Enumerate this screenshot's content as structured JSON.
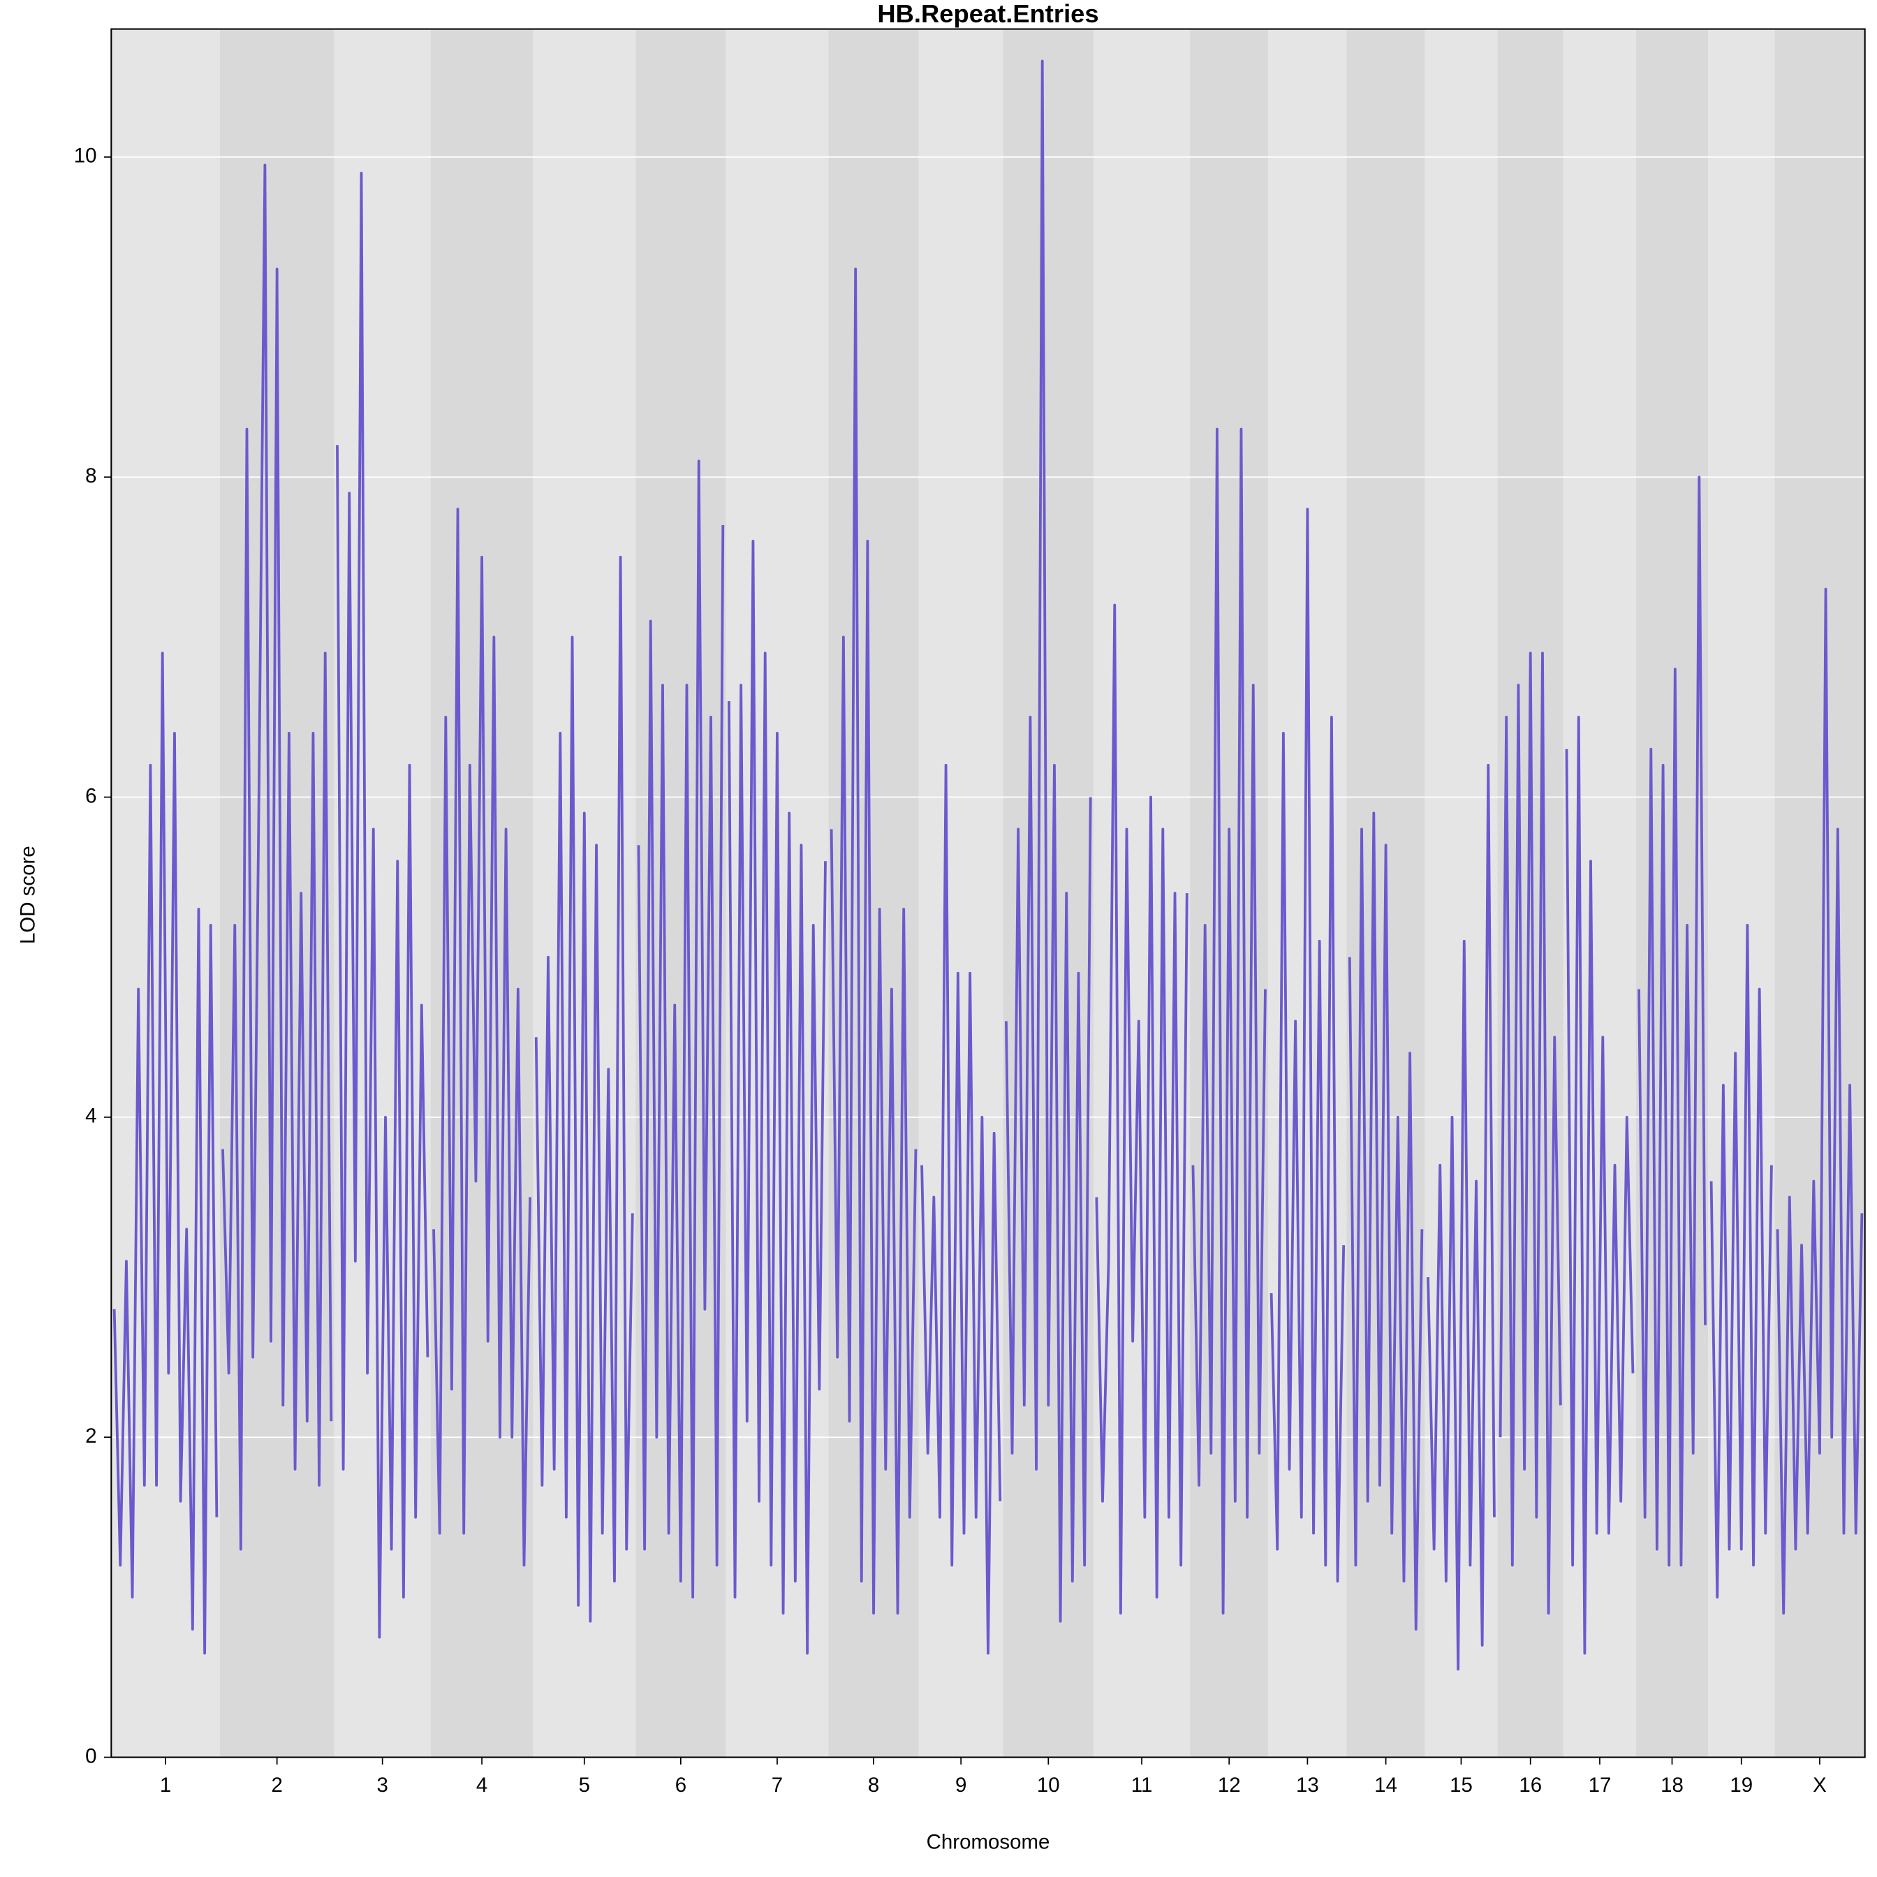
{
  "chart_data": {
    "type": "line",
    "title": "HB.Repeat.Entries",
    "x_label": "Chromosome",
    "y_label": "LOD score",
    "ylim": [
      0,
      10.8
    ],
    "yticks": [
      0,
      2,
      4,
      6,
      8,
      10
    ],
    "grid": true,
    "color": "#6a5acd",
    "band_colors": [
      "#e5e5e5",
      "#d9d9d9"
    ],
    "categories": [
      "1",
      "2",
      "3",
      "4",
      "5",
      "6",
      "7",
      "8",
      "9",
      "10",
      "11",
      "12",
      "13",
      "14",
      "15",
      "16",
      "17",
      "18",
      "19",
      "X"
    ],
    "values": [
      [
        2.8,
        1.2,
        3.1,
        1.0,
        4.8,
        1.7,
        6.2,
        1.7,
        6.9,
        2.4,
        6.4,
        1.6,
        3.3,
        0.8,
        5.3,
        0.65,
        5.2,
        1.5
      ],
      [
        3.8,
        2.4,
        5.2,
        1.3,
        8.3,
        2.5,
        6.0,
        9.95,
        2.6,
        9.3,
        2.2,
        6.4,
        1.8,
        5.4,
        2.1,
        6.4,
        1.7,
        6.9,
        2.1
      ],
      [
        8.2,
        1.8,
        7.9,
        3.1,
        9.9,
        2.4,
        5.8,
        0.75,
        4.0,
        1.3,
        5.6,
        1.0,
        6.2,
        1.5,
        4.7,
        2.5
      ],
      [
        3.3,
        1.4,
        6.5,
        2.3,
        7.8,
        1.4,
        6.2,
        3.6,
        7.5,
        2.6,
        7.0,
        2.0,
        5.8,
        2.0,
        4.8,
        1.2,
        3.5
      ],
      [
        4.5,
        1.7,
        5.0,
        1.8,
        6.4,
        1.5,
        7.0,
        0.95,
        5.9,
        0.85,
        5.7,
        1.4,
        4.3,
        1.1,
        7.5,
        1.3,
        3.4
      ],
      [
        5.7,
        1.3,
        7.1,
        2.0,
        6.7,
        1.4,
        4.7,
        1.1,
        6.7,
        1.0,
        8.1,
        2.8,
        6.5,
        1.2,
        7.7
      ],
      [
        6.6,
        1.0,
        6.7,
        2.1,
        7.6,
        1.6,
        6.9,
        1.2,
        6.4,
        0.9,
        5.9,
        1.1,
        5.7,
        0.65,
        5.2,
        2.3,
        5.6
      ],
      [
        5.8,
        2.5,
        7.0,
        2.1,
        9.3,
        1.1,
        7.6,
        0.9,
        5.3,
        1.8,
        4.8,
        0.9,
        5.3,
        1.5,
        3.8
      ],
      [
        3.7,
        1.9,
        3.5,
        1.5,
        6.2,
        1.2,
        4.9,
        1.4,
        4.9,
        1.5,
        4.0,
        0.65,
        3.9,
        1.6
      ],
      [
        4.6,
        1.9,
        5.8,
        2.2,
        6.5,
        1.8,
        10.6,
        2.2,
        6.2,
        0.85,
        5.4,
        1.1,
        4.9,
        1.2,
        6.0
      ],
      [
        3.5,
        1.6,
        3.1,
        7.2,
        0.9,
        5.8,
        2.6,
        4.6,
        1.5,
        6.0,
        1.0,
        5.8,
        1.5,
        5.4,
        1.2,
        5.4
      ],
      [
        3.7,
        1.7,
        5.2,
        1.9,
        8.3,
        0.9,
        5.8,
        1.6,
        8.3,
        1.5,
        6.7,
        1.9,
        4.8
      ],
      [
        2.9,
        1.3,
        6.4,
        1.8,
        4.6,
        1.5,
        7.8,
        1.4,
        5.1,
        1.2,
        6.5,
        1.1,
        3.2
      ],
      [
        5.0,
        1.2,
        5.8,
        1.6,
        5.9,
        1.7,
        5.7,
        1.4,
        4.0,
        1.1,
        4.4,
        0.8,
        3.3
      ],
      [
        3.0,
        1.3,
        3.7,
        1.1,
        4.0,
        0.55,
        5.1,
        1.2,
        3.6,
        0.7,
        6.2,
        1.5
      ],
      [
        2.0,
        6.5,
        1.2,
        6.7,
        1.8,
        6.9,
        1.5,
        6.9,
        0.9,
        4.5,
        2.2
      ],
      [
        6.3,
        1.2,
        6.5,
        0.65,
        5.6,
        1.4,
        4.5,
        1.4,
        3.7,
        1.6,
        4.0,
        2.4
      ],
      [
        4.8,
        1.5,
        6.3,
        1.3,
        6.2,
        1.2,
        6.8,
        1.2,
        5.2,
        1.9,
        8.0,
        2.7
      ],
      [
        3.6,
        1.0,
        4.2,
        1.3,
        4.4,
        1.3,
        5.2,
        1.2,
        4.8,
        1.4,
        3.7
      ],
      [
        3.3,
        0.9,
        3.5,
        1.3,
        3.2,
        1.4,
        3.6,
        1.9,
        7.3,
        2.0,
        5.8,
        1.4,
        4.2,
        1.4,
        3.4
      ]
    ]
  }
}
